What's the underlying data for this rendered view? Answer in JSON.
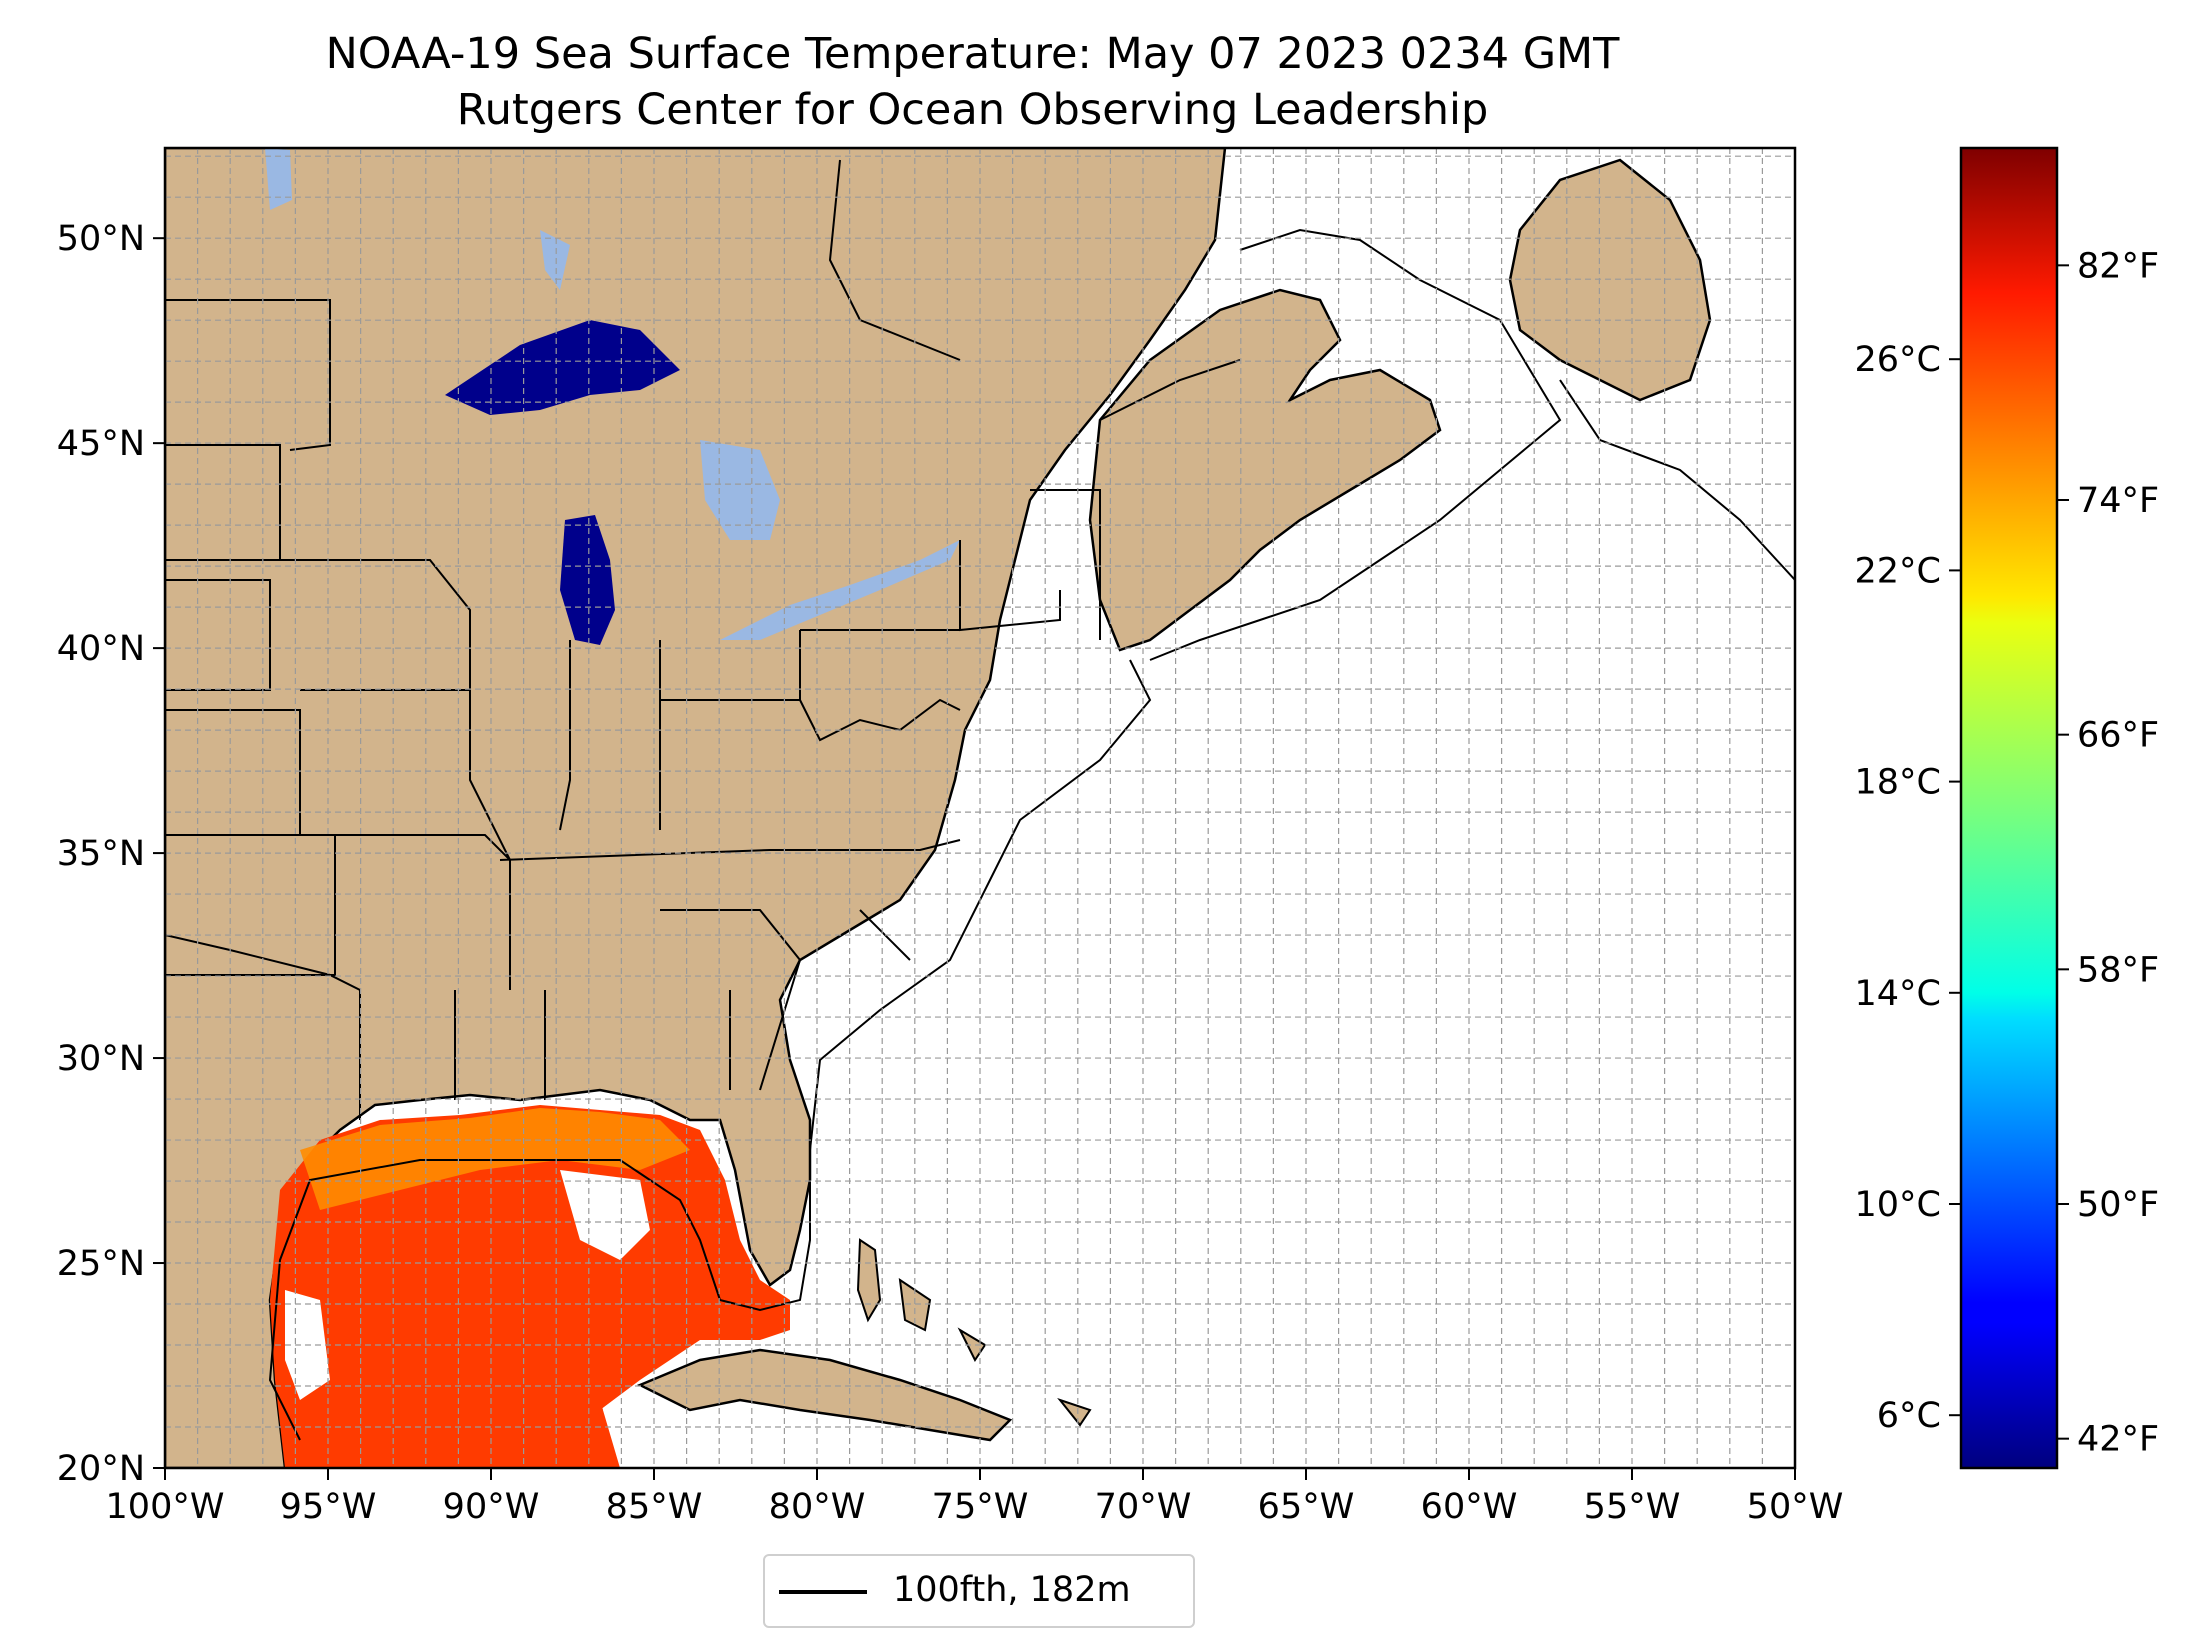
{
  "title": "NOAA-19 Sea Surface Temperature: May 07 2023 0234 GMT",
  "subtitle": "Rutgers Center for Ocean Observing Leadership",
  "map": {
    "lon_range": [
      -100,
      -50
    ],
    "lat_range": [
      20,
      52.2
    ],
    "lon_ticks": [
      "100°W",
      "95°W",
      "90°W",
      "85°W",
      "80°W",
      "75°W",
      "70°W",
      "65°W",
      "60°W",
      "55°W",
      "50°W"
    ],
    "lat_ticks": [
      "20°N",
      "25°N",
      "30°N",
      "35°N",
      "40°N",
      "45°N",
      "50°N"
    ],
    "grid": true,
    "land_color": "#d2b48c",
    "lake_color": "#9ab8e3",
    "ocean_color": "#ffffff"
  },
  "colorbar": {
    "colormap": "jet",
    "celsius_range": [
      5.0,
      30.0
    ],
    "celsius_ticks": [
      "26°C",
      "22°C",
      "18°C",
      "14°C",
      "10°C",
      "6°C"
    ],
    "fahrenheit_ticks": [
      "82°F",
      "74°F",
      "66°F",
      "58°F",
      "50°F",
      "42°F"
    ]
  },
  "legend": {
    "label": "100fth, 182m",
    "placement": "lower-center"
  },
  "chart_data": {
    "type": "heatmap",
    "title": "NOAA-19 Sea Surface Temperature: May 07 2023 0234 GMT",
    "subtitle": "Rutgers Center for Ocean Observing Leadership",
    "xlim": [
      -100,
      -50
    ],
    "ylim": [
      20,
      52.2
    ],
    "colorbar_range_c": [
      5.0,
      30.0
    ],
    "grid": true,
    "legend_placement": "lower-center"
  }
}
